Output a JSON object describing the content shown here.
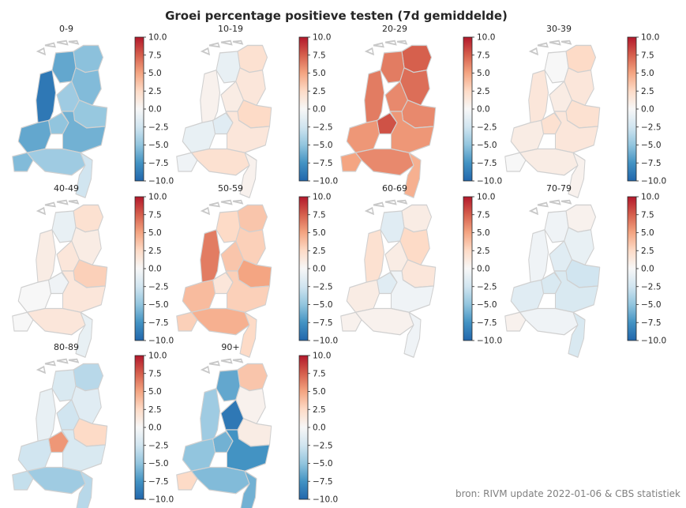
{
  "title": "Groei percentage positieve testen (7d gemiddelde)",
  "source": "bron: RIVM update 2022-01-06 & CBS statistiek",
  "colors": {
    "cmap": [
      "#2166ac",
      "#4393c3",
      "#92c5de",
      "#d1e5f0",
      "#f7f7f7",
      "#fddbc7",
      "#f4a582",
      "#d6604d",
      "#b2182b"
    ],
    "land_border": "#d0d0d0"
  },
  "chart_data": [
    {
      "type": "heatmap",
      "title": "0-9",
      "vmin": -10,
      "vmax": 10,
      "colorbar_ticks": [
        "10.0",
        "7.5",
        "5.0",
        "2.5",
        "0.0",
        "−2.5",
        "−5.0",
        "−7.5",
        "−10.0"
      ],
      "regions": {
        "groningen": -5.2,
        "friesland": -6.5,
        "drenthe": -5.5,
        "overijssel": -4.8,
        "gelderland": -6.0,
        "flevoland": -4.5,
        "utrecht": -5.0,
        "noord_holland": -9.0,
        "zuid_holland": -6.5,
        "zeeland": -5.5,
        "noord_brabant": -4.5,
        "limburg": -2.5
      }
    },
    {
      "type": "heatmap",
      "title": "10-19",
      "vmin": -10,
      "vmax": 10,
      "colorbar_ticks": [
        "10.0",
        "7.5",
        "5.0",
        "2.5",
        "0.0",
        "−2.5",
        "−5.0",
        "−7.5",
        "−10.0"
      ],
      "regions": {
        "groningen": 2.0,
        "friesland": -1.0,
        "drenthe": 1.5,
        "overijssel": 2.5,
        "gelderland": 1.5,
        "flevoland": 1.0,
        "utrecht": -1.5,
        "noord_holland": 0.5,
        "zuid_holland": -1.0,
        "zeeland": -0.5,
        "noord_brabant": 2.0,
        "limburg": 0.5
      }
    },
    {
      "type": "heatmap",
      "title": "20-29",
      "vmin": -10,
      "vmax": 10,
      "colorbar_ticks": [
        "10.0",
        "7.5",
        "5.0",
        "2.5",
        "0.0",
        "−2.5",
        "−5.0",
        "−7.5",
        "−10.0"
      ],
      "regions": {
        "groningen": 7.5,
        "friesland": 6.5,
        "drenthe": 7.0,
        "overijssel": 6.0,
        "gelderland": 5.5,
        "flevoland": 6.0,
        "utrecht": 8.0,
        "noord_holland": 6.5,
        "zuid_holland": 5.5,
        "zeeland": 5.0,
        "noord_brabant": 6.0,
        "limburg": 4.5
      }
    },
    {
      "type": "heatmap",
      "title": "30-39",
      "vmin": -10,
      "vmax": 10,
      "colorbar_ticks": [
        "10.0",
        "7.5",
        "5.0",
        "2.5",
        "0.0",
        "−2.5",
        "−5.0",
        "−7.5",
        "−10.0"
      ],
      "regions": {
        "groningen": 2.5,
        "friesland": 0.0,
        "drenthe": 1.5,
        "overijssel": 2.0,
        "gelderland": 1.5,
        "flevoland": 1.0,
        "utrecht": 2.0,
        "noord_holland": 1.5,
        "zuid_holland": 1.0,
        "zeeland": 0.0,
        "noord_brabant": 1.0,
        "limburg": 0.5
      }
    },
    {
      "type": "heatmap",
      "title": "40-49",
      "vmin": -10,
      "vmax": 10,
      "colorbar_ticks": [
        "10.0",
        "7.5",
        "5.0",
        "2.5",
        "0.0",
        "−2.5",
        "−5.0",
        "−7.5",
        "−10.0"
      ],
      "regions": {
        "groningen": 2.0,
        "friesland": -1.0,
        "drenthe": 1.0,
        "overijssel": 3.0,
        "gelderland": 1.5,
        "flevoland": 1.5,
        "utrecht": -0.5,
        "noord_holland": 1.0,
        "zuid_holland": 0.0,
        "zeeland": 0.0,
        "noord_brabant": 1.5,
        "limburg": -1.0
      }
    },
    {
      "type": "heatmap",
      "title": "50-59",
      "vmin": -10,
      "vmax": 10,
      "colorbar_ticks": [
        "10.0",
        "7.5",
        "5.0",
        "2.5",
        "0.0",
        "−2.5",
        "−5.0",
        "−7.5",
        "−10.0"
      ],
      "regions": {
        "groningen": 3.5,
        "friesland": 2.5,
        "drenthe": 3.0,
        "overijssel": 5.0,
        "gelderland": 3.0,
        "flevoland": 3.5,
        "utrecht": 1.5,
        "noord_holland": 6.5,
        "zuid_holland": 4.0,
        "zeeland": 3.0,
        "noord_brabant": 4.5,
        "limburg": 2.5
      }
    },
    {
      "type": "heatmap",
      "title": "60-69",
      "vmin": -10,
      "vmax": 10,
      "colorbar_ticks": [
        "10.0",
        "7.5",
        "5.0",
        "2.5",
        "0.0",
        "−2.5",
        "−5.0",
        "−7.5",
        "−10.0"
      ],
      "regions": {
        "groningen": 1.0,
        "friesland": -1.5,
        "drenthe": 2.5,
        "overijssel": 1.5,
        "gelderland": -0.5,
        "flevoland": 1.0,
        "utrecht": -1.5,
        "noord_holland": 2.0,
        "zuid_holland": 1.0,
        "zeeland": 0.5,
        "noord_brabant": 0.5,
        "limburg": -0.5
      }
    },
    {
      "type": "heatmap",
      "title": "70-79",
      "vmin": -10,
      "vmax": 10,
      "colorbar_ticks": [
        "10.0",
        "7.5",
        "5.0",
        "2.5",
        "0.0",
        "−2.5",
        "−5.0",
        "−7.5",
        "−10.0"
      ],
      "regions": {
        "groningen": 0.5,
        "friesland": -0.5,
        "drenthe": -1.0,
        "overijssel": -2.5,
        "gelderland": -2.0,
        "flevoland": -1.5,
        "utrecht": -2.0,
        "noord_holland": -0.5,
        "zuid_holland": -1.5,
        "zeeland": 0.5,
        "noord_brabant": -0.5,
        "limburg": -2.0
      }
    },
    {
      "type": "heatmap",
      "title": "80-89",
      "vmin": -10,
      "vmax": 10,
      "colorbar_ticks": [
        "10.0",
        "7.5",
        "5.0",
        "2.5",
        "0.0",
        "−2.5",
        "−5.0",
        "−7.5",
        "−10.0"
      ],
      "regions": {
        "groningen": -3.5,
        "friesland": -2.0,
        "drenthe": -1.5,
        "overijssel": 2.5,
        "gelderland": -2.0,
        "flevoland": -2.5,
        "utrecht": 5.5,
        "noord_holland": -1.0,
        "zuid_holland": -2.5,
        "zeeland": -3.0,
        "noord_brabant": -4.5,
        "limburg": -3.5
      }
    },
    {
      "type": "heatmap",
      "title": "90+",
      "vmin": -10,
      "vmax": 10,
      "colorbar_ticks": [
        "10.0",
        "7.5",
        "5.0",
        "2.5",
        "0.0",
        "−2.5",
        "−5.0",
        "−7.5",
        "−10.0"
      ],
      "regions": {
        "groningen": 3.5,
        "friesland": -6.5,
        "drenthe": 0.5,
        "overijssel": 1.0,
        "gelderland": -7.5,
        "flevoland": -9.0,
        "utrecht": -6.0,
        "noord_holland": -4.5,
        "zuid_holland": -5.0,
        "zeeland": 2.5,
        "noord_brabant": -5.5,
        "limburg": -6.0
      }
    }
  ]
}
